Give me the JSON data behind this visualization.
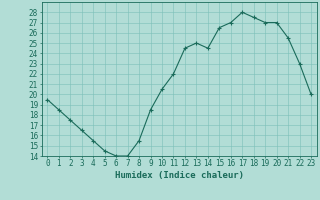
{
  "x": [
    0,
    1,
    2,
    3,
    4,
    5,
    6,
    7,
    8,
    9,
    10,
    11,
    12,
    13,
    14,
    15,
    16,
    17,
    18,
    19,
    20,
    21,
    22,
    23
  ],
  "y": [
    19.5,
    18.5,
    17.5,
    16.5,
    15.5,
    14.5,
    14.0,
    14.0,
    15.5,
    18.5,
    20.5,
    22.0,
    24.5,
    25.0,
    24.5,
    26.5,
    27.0,
    28.0,
    27.5,
    27.0,
    27.0,
    25.5,
    23.0,
    20.0
  ],
  "line_color": "#1a6b5a",
  "marker": "+",
  "marker_size": 3,
  "bg_color": "#b2ddd6",
  "grid_color": "#7cc0b8",
  "axis_color": "#1a6b5a",
  "xlabel": "Humidex (Indice chaleur)",
  "xlim": [
    -0.5,
    23.5
  ],
  "ylim": [
    14,
    29
  ],
  "yticks": [
    14,
    15,
    16,
    17,
    18,
    19,
    20,
    21,
    22,
    23,
    24,
    25,
    26,
    27,
    28
  ],
  "xticks": [
    0,
    1,
    2,
    3,
    4,
    5,
    6,
    7,
    8,
    9,
    10,
    11,
    12,
    13,
    14,
    15,
    16,
    17,
    18,
    19,
    20,
    21,
    22,
    23
  ],
  "tick_font_size": 5.5,
  "xlabel_font_size": 6.5
}
